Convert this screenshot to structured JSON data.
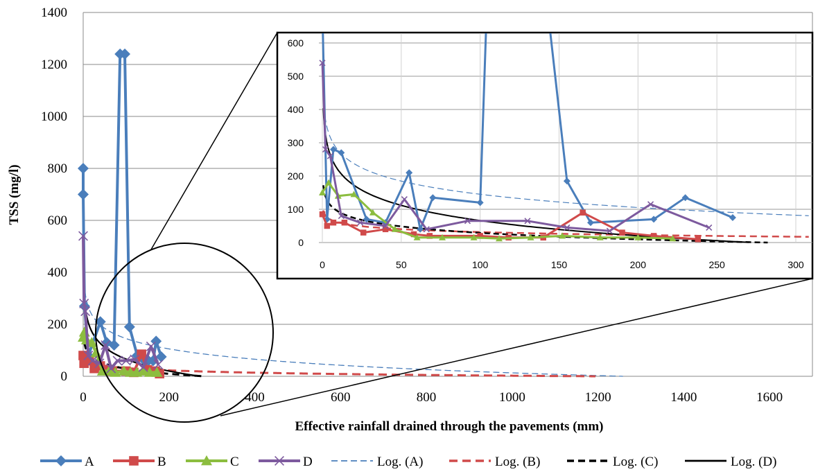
{
  "chart_data": {
    "type": "line",
    "title": "",
    "xlabel": "Effective rainfall drained through the pavements (mm)",
    "ylabel": "TSS (mg/l)",
    "xlim": [
      -30,
      1700
    ],
    "ylim": [
      0,
      1400
    ],
    "x_ticks": [
      0,
      200,
      400,
      600,
      800,
      1000,
      1200,
      1400,
      1600
    ],
    "y_ticks": [
      0,
      200,
      400,
      600,
      800,
      1000,
      1200,
      1400
    ],
    "grid": "horizontal",
    "legend_position": "bottom",
    "colors": {
      "A": "#4a7ebb",
      "B": "#d04a4a",
      "C": "#8cbd3f",
      "D": "#7d5a9e",
      "logA": "#4a7ebb",
      "logB": "#d04a4a",
      "logC": "#000000",
      "logD": "#000000"
    },
    "series": [
      {
        "name": "A",
        "marker": "diamond",
        "x": [
          0,
          0,
          3,
          12,
          40,
          55,
          72,
          86,
          97,
          108,
          126,
          140,
          152,
          163,
          170,
          182
        ],
        "y": [
          800,
          700,
          270,
          80,
          210,
          130,
          120,
          1240,
          1240,
          190,
          80,
          65,
          60,
          60,
          135,
          75
        ]
      },
      {
        "name": "B",
        "marker": "square",
        "x": [
          0,
          2,
          6,
          14,
          26,
          40,
          58,
          68,
          100,
          118,
          136,
          150,
          168,
          178
        ],
        "y": [
          80,
          50,
          60,
          60,
          30,
          40,
          25,
          20,
          20,
          15,
          85,
          25,
          20,
          10
        ]
      },
      {
        "name": "C",
        "marker": "triangle",
        "x": [
          0,
          3,
          8,
          20,
          30,
          45,
          60,
          75,
          95,
          110,
          125,
          140,
          155,
          172
        ],
        "y": [
          150,
          170,
          140,
          130,
          90,
          20,
          20,
          15,
          20,
          15,
          15,
          20,
          15,
          15
        ]
      },
      {
        "name": "D",
        "marker": "x",
        "x": [
          0,
          2,
          5,
          12,
          22,
          38,
          52,
          65,
          80,
          100,
          120,
          140,
          158,
          175
        ],
        "y": [
          540,
          280,
          250,
          80,
          60,
          50,
          120,
          30,
          60,
          60,
          65,
          35,
          115,
          45
        ]
      }
    ],
    "log_trendlines": [
      {
        "name": "Log. (A)",
        "style": "dashed-thin",
        "a": 409,
        "b": 57.3
      },
      {
        "name": "Log. (B)",
        "style": "dashed-thick",
        "a": 90,
        "b": 12.7
      },
      {
        "name": "Log. (C)",
        "style": "dashed-bold",
        "a": 158,
        "b": 28
      },
      {
        "name": "Log. (D)",
        "style": "solid",
        "a": 370,
        "b": 66
      }
    ],
    "inset": {
      "xlim": [
        -5,
        305
      ],
      "ylim": [
        0,
        650
      ],
      "x_ticks": [
        0,
        50,
        100,
        150,
        200,
        250,
        300
      ],
      "y_ticks": [
        0,
        100,
        200,
        300,
        400,
        500,
        600
      ],
      "series": [
        {
          "name": "A",
          "x": [
            0,
            0,
            3,
            7,
            12,
            28,
            40,
            55,
            62,
            70,
            100,
            108,
            130,
            155,
            170,
            210,
            230,
            260
          ],
          "y": [
            800,
            700,
            70,
            280,
            270,
            70,
            60,
            210,
            40,
            135,
            120,
            1240,
            1240,
            185,
            60,
            70,
            135,
            75
          ]
        },
        {
          "name": "B",
          "x": [
            0,
            3,
            7,
            14,
            26,
            40,
            58,
            68,
            100,
            118,
            140,
            165,
            190,
            210,
            238
          ],
          "y": [
            85,
            50,
            60,
            60,
            30,
            40,
            25,
            20,
            20,
            15,
            15,
            90,
            30,
            20,
            10
          ]
        },
        {
          "name": "C",
          "x": [
            0,
            4,
            10,
            20,
            32,
            46,
            60,
            76,
            96,
            112,
            132,
            152,
            176,
            200,
            222
          ],
          "y": [
            150,
            180,
            140,
            145,
            90,
            40,
            15,
            15,
            15,
            12,
            15,
            20,
            15,
            15,
            12
          ]
        },
        {
          "name": "D",
          "x": [
            0,
            2,
            5,
            12,
            24,
            40,
            52,
            66,
            92,
            130,
            155,
            182,
            208,
            245
          ],
          "y": [
            540,
            280,
            260,
            80,
            60,
            50,
            130,
            40,
            65,
            65,
            45,
            35,
            115,
            45
          ]
        }
      ]
    }
  }
}
